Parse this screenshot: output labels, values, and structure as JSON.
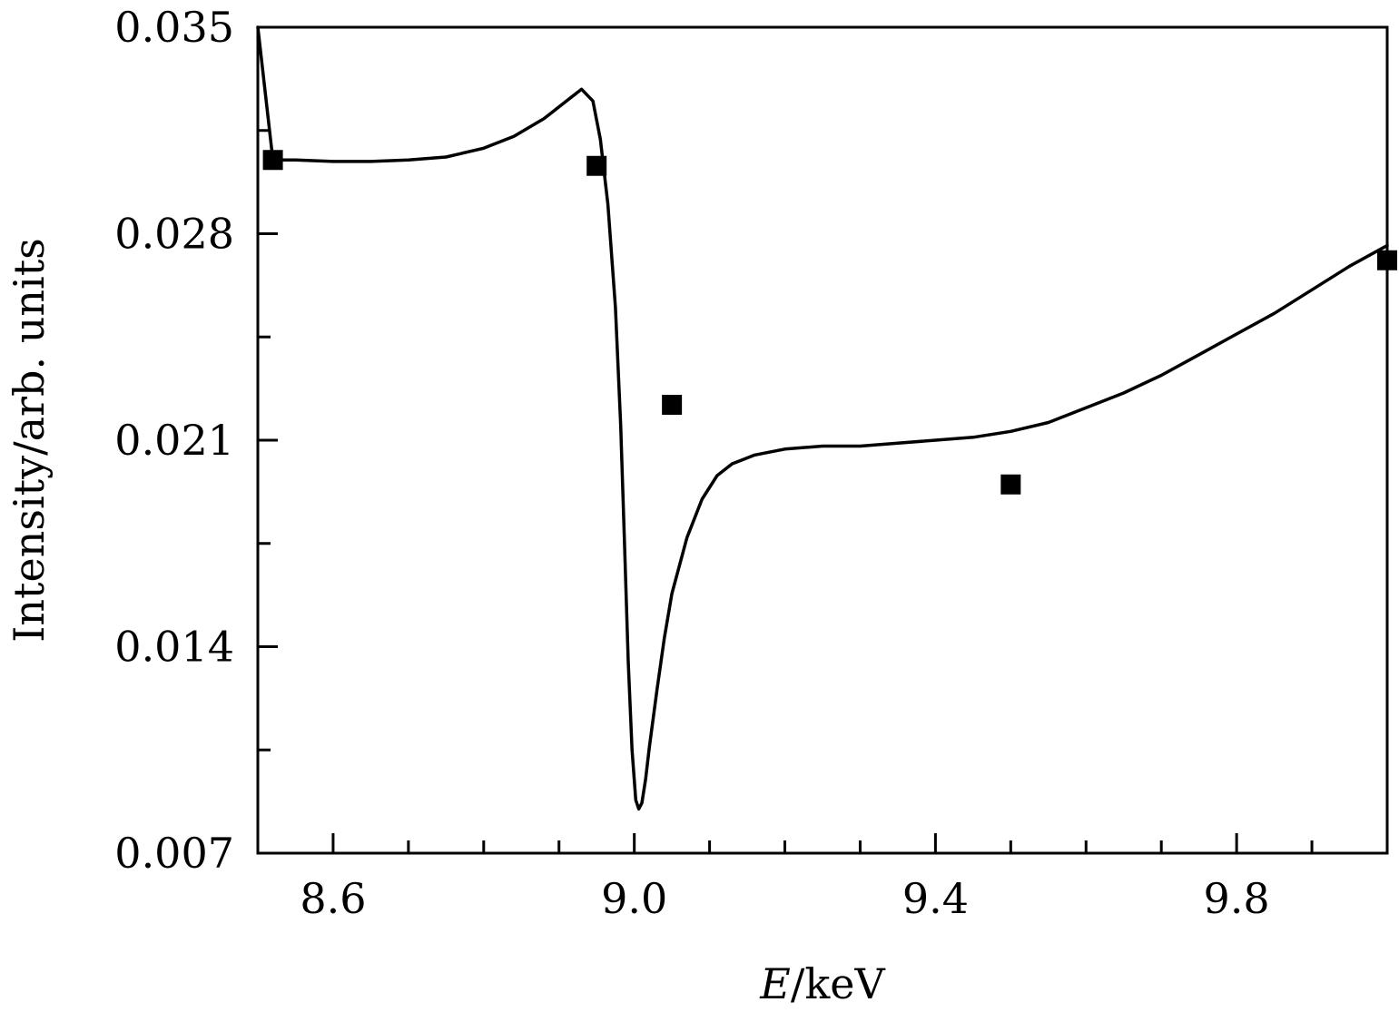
{
  "chart_data": {
    "type": "line",
    "title": "",
    "xlabel": "E/keV",
    "xlabel_var": "E",
    "xlabel_unit": "/keV",
    "ylabel": "Intensity/arb. units",
    "xlim": [
      8.5,
      10.0
    ],
    "ylim": [
      0.007,
      0.035
    ],
    "xticks": [
      8.6,
      9.0,
      9.4,
      9.8
    ],
    "xtick_labels": [
      "8.6",
      "9.0",
      "9.4",
      "9.8"
    ],
    "x_minor_step": 0.1,
    "yticks": [
      0.007,
      0.014,
      0.021,
      0.028,
      0.035
    ],
    "ytick_labels": [
      "0.007",
      "0.014",
      "0.021",
      "0.028",
      "0.035"
    ],
    "y_minor_step": 0.0035,
    "grid": false,
    "legend": "none",
    "colors": {
      "line": "#000000",
      "markers": "#000000"
    },
    "series": [
      {
        "kind": "line",
        "x": [
          8.5,
          8.52,
          8.55,
          8.6,
          8.65,
          8.7,
          8.75,
          8.8,
          8.84,
          8.88,
          8.91,
          8.93,
          8.945,
          8.955,
          8.965,
          8.975,
          8.982,
          8.987,
          8.992,
          8.997,
          9.002,
          9.006,
          9.01,
          9.015,
          9.02,
          9.03,
          9.04,
          9.05,
          9.07,
          9.09,
          9.11,
          9.13,
          9.16,
          9.2,
          9.25,
          9.3,
          9.35,
          9.4,
          9.45,
          9.5,
          9.55,
          9.6,
          9.65,
          9.7,
          9.75,
          9.8,
          9.85,
          9.9,
          9.95,
          10.0
        ],
        "y": [
          0.035,
          0.0305,
          0.0305,
          0.03045,
          0.03045,
          0.0305,
          0.0306,
          0.0309,
          0.0313,
          0.0319,
          0.0325,
          0.0329,
          0.0325,
          0.0312,
          0.029,
          0.0255,
          0.0215,
          0.0175,
          0.0135,
          0.0105,
          0.0088,
          0.0085,
          0.0087,
          0.0095,
          0.0106,
          0.0125,
          0.0143,
          0.0158,
          0.0177,
          0.019,
          0.0198,
          0.0202,
          0.0205,
          0.0207,
          0.0208,
          0.0208,
          0.0209,
          0.021,
          0.0211,
          0.0213,
          0.0216,
          0.0221,
          0.0226,
          0.0232,
          0.0239,
          0.0246,
          0.0253,
          0.0261,
          0.0269,
          0.0276
        ]
      },
      {
        "kind": "markers",
        "marker": "square",
        "x": [
          8.52,
          8.95,
          9.05,
          9.5,
          10.0
        ],
        "y": [
          0.0305,
          0.0303,
          0.0222,
          0.0195,
          0.0271
        ]
      }
    ]
  }
}
